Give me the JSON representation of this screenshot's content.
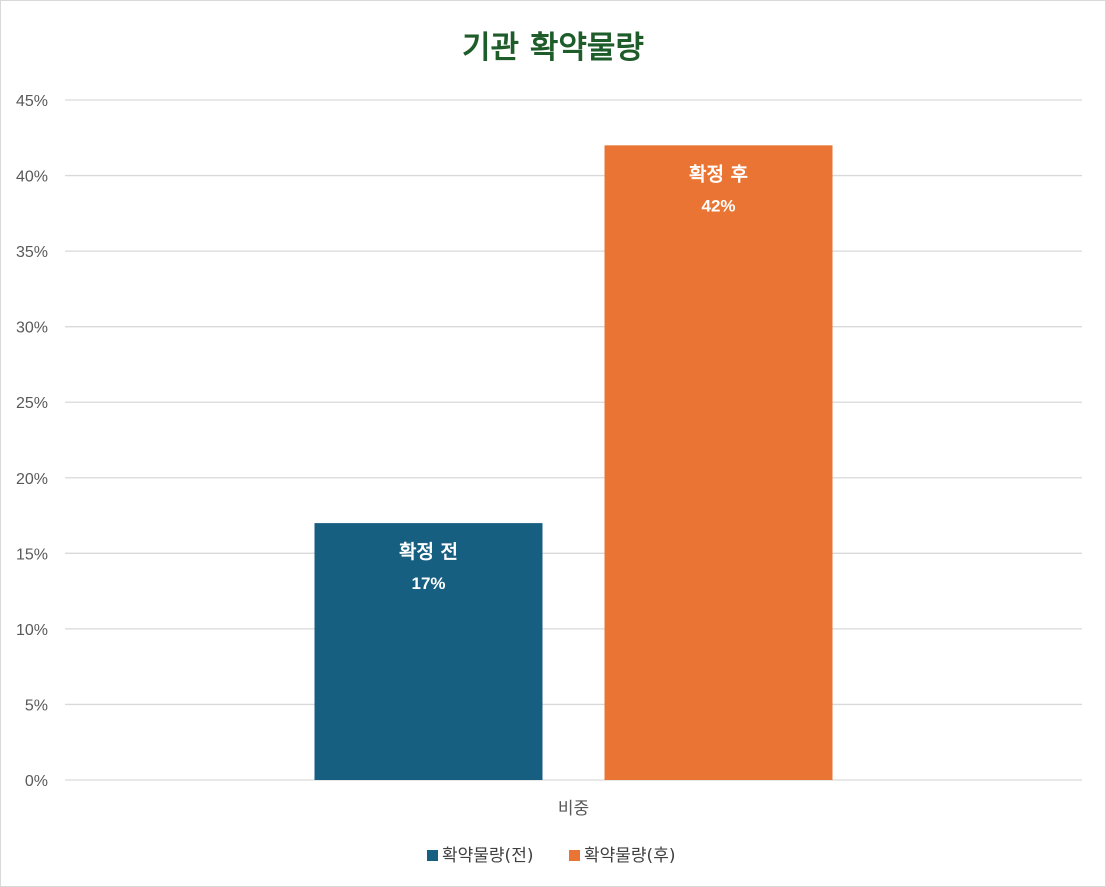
{
  "chart_data": {
    "type": "bar",
    "title": "기관 확약물량",
    "categories": [
      "비중"
    ],
    "series": [
      {
        "name": "확약물량(전)",
        "values": [
          0.17
        ],
        "label": "확정 전",
        "value_label": "17%",
        "color": "#175f80"
      },
      {
        "name": "확약물량(후)",
        "values": [
          0.42
        ],
        "label": "확정 후",
        "value_label": "42%",
        "color": "#ea7433"
      }
    ],
    "ylim": [
      0,
      0.45
    ],
    "y_ticks": [
      0,
      0.05,
      0.1,
      0.15,
      0.2,
      0.25,
      0.3,
      0.35,
      0.4,
      0.45
    ],
    "y_tick_labels": [
      "0%",
      "5%",
      "10%",
      "15%",
      "20%",
      "25%",
      "30%",
      "35%",
      "40%",
      "45%"
    ],
    "grid": true,
    "legend": "bottom",
    "xlabel": "",
    "ylabel": ""
  }
}
